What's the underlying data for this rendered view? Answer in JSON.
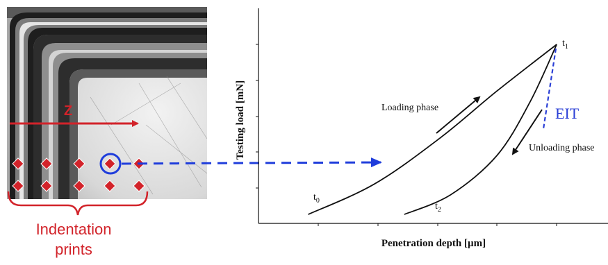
{
  "micrograph": {
    "axis_label": "Z",
    "indentation_label_line1": "Indentation",
    "indentation_label_line2": "prints"
  },
  "chart_data": {
    "type": "line",
    "xlabel": "Penetration depth [µm]",
    "ylabel": "Testing load [mN]",
    "series": [
      {
        "name": "Loading phase",
        "points": [
          [
            0.15,
            0.05
          ],
          [
            0.35,
            0.22
          ],
          [
            0.55,
            0.48
          ],
          [
            0.72,
            0.74
          ],
          [
            0.9,
            1.0
          ]
        ]
      },
      {
        "name": "Unloading phase",
        "points": [
          [
            0.9,
            1.0
          ],
          [
            0.82,
            0.68
          ],
          [
            0.72,
            0.38
          ],
          [
            0.58,
            0.16
          ],
          [
            0.44,
            0.05
          ]
        ]
      }
    ],
    "points_labels": {
      "t0": "t",
      "t0_sub": "0",
      "t1": "t",
      "t1_sub": "1",
      "t2": "t",
      "t2_sub": "2"
    },
    "annotations": {
      "loading": "Loading phase",
      "unloading": "Unloading phase",
      "eit": "EIT"
    },
    "colors": {
      "curve": "#000000",
      "eit": "#2a3fd6",
      "arrow_blue": "#1f3ddb",
      "prints": "#d2232a"
    }
  }
}
